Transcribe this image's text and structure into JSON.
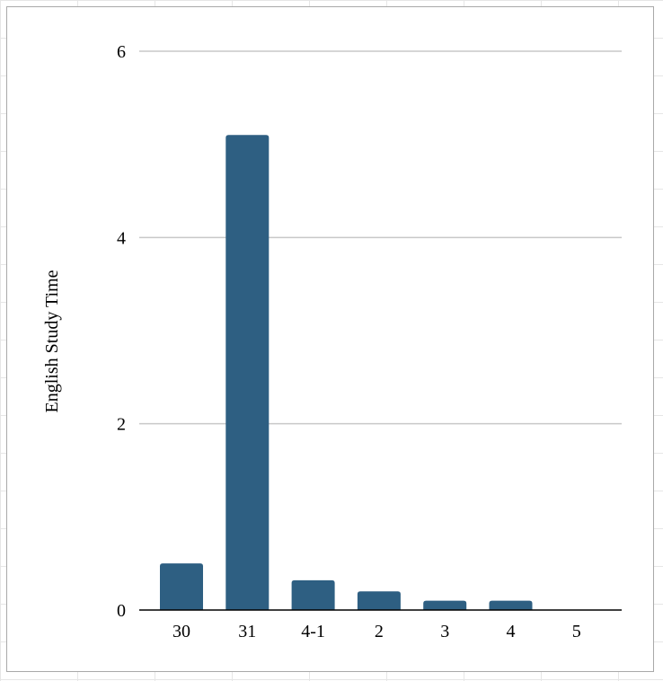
{
  "chart_data": {
    "type": "bar",
    "title": "",
    "xlabel": "",
    "ylabel": "English Study Time",
    "categories": [
      "30",
      "31",
      "4-1",
      "2",
      "3",
      "4",
      "5"
    ],
    "values": [
      0.5,
      5.1,
      0.32,
      0.2,
      0.1,
      0.1,
      0
    ],
    "ylim": [
      0,
      6
    ],
    "yticks": [
      "0",
      "2",
      "4",
      "6"
    ],
    "grid": true,
    "legend": "none",
    "colors": {
      "bar": "#2e5f82",
      "grid": "#c8c8c8",
      "axis": "#000000"
    }
  }
}
